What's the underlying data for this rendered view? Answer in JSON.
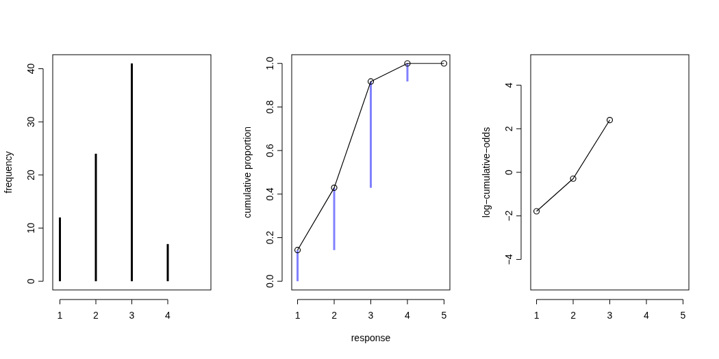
{
  "chart_data": [
    {
      "type": "bar",
      "x": [
        1,
        2,
        3,
        4
      ],
      "values": [
        12,
        24,
        41,
        7
      ],
      "color": "#000000",
      "xlim": [
        0.8,
        5.2
      ],
      "xticks": [
        1,
        2,
        3,
        4
      ],
      "ylim": [
        -1.64,
        42.64
      ],
      "yticks": [
        0,
        10,
        20,
        30,
        40
      ],
      "ylabel": "frequency"
    },
    {
      "type": "line",
      "x": [
        1,
        2,
        3,
        4,
        5
      ],
      "xlabel": "response",
      "ylabel": "cumulative proportion",
      "marker": "circle",
      "xlim": [
        0.84,
        5.16
      ],
      "xticks": [
        1,
        2,
        3,
        4,
        5
      ],
      "ylim": [
        -0.04,
        1.04
      ],
      "yticks": [
        {
          "value": 0,
          "label": "0.0"
        },
        {
          "value": 0.2,
          "label": "0.2"
        },
        {
          "value": 0.4,
          "label": "0.4"
        },
        {
          "value": 0.6,
          "label": "0.6"
        },
        {
          "value": 0.8,
          "label": "0.8"
        },
        {
          "value": 1,
          "label": "1.0"
        }
      ],
      "series": [
        {
          "type": "bar",
          "x": [
            1,
            2,
            3,
            4
          ],
          "base": [
            0,
            0.143,
            0.429,
            0.917
          ],
          "values": [
            0.143,
            0.286,
            0.488,
            0.083
          ],
          "color": "#8080ff"
        },
        {
          "color": "#000000",
          "values": [
            0.143,
            0.429,
            0.917,
            1,
            1
          ]
        }
      ]
    },
    {
      "type": "line",
      "x": [
        1,
        2,
        3
      ],
      "values": [
        -1.79,
        -0.29,
        2.4
      ],
      "color": "#000000",
      "marker": "circle",
      "ylabel": "log−cumulative−odds",
      "xlim": [
        0.84,
        5.16
      ],
      "xticks": [
        1,
        2,
        3,
        4,
        5
      ],
      "ylim": [
        -5.4,
        5.4
      ],
      "yticks": [
        {
          "value": -4,
          "label": "−4"
        },
        {
          "value": -2,
          "label": "−2"
        },
        {
          "value": 0,
          "label": "0"
        },
        {
          "value": 2,
          "label": "2"
        },
        {
          "value": 4,
          "label": "4"
        }
      ]
    }
  ]
}
